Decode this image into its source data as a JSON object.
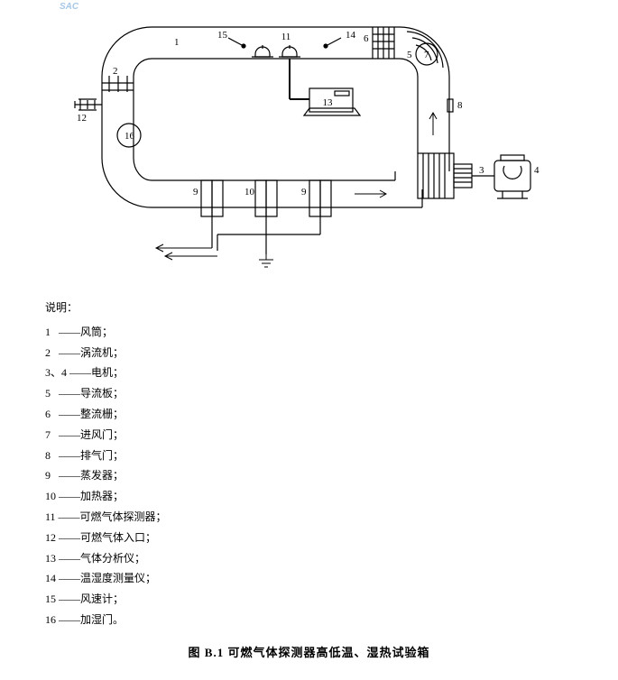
{
  "watermark": "SAC",
  "diagram": {
    "stroke": "#000000",
    "stroke_width": 1.2,
    "background": "#ffffff",
    "label_font_size": 11,
    "labels": {
      "l1": "1",
      "l2": "2",
      "l3": "3",
      "l4": "4",
      "l5": "5",
      "l6": "6",
      "l7": "7",
      "l8": "8",
      "l9a": "9",
      "l9b": "9",
      "l10": "10",
      "l11": "11",
      "l12": "12",
      "l13": "13",
      "l14": "14",
      "l15": "15",
      "l16": "16"
    }
  },
  "legend": {
    "title": "说明：",
    "items": [
      {
        "num": "1",
        "dash": "——",
        "text": "风筒；"
      },
      {
        "num": "2",
        "dash": "——",
        "text": "涡流机；"
      },
      {
        "num": "3、4",
        "dash": "——",
        "text": "电机；"
      },
      {
        "num": "5",
        "dash": "——",
        "text": "导流板；"
      },
      {
        "num": "6",
        "dash": "——",
        "text": "整流栅；"
      },
      {
        "num": "7",
        "dash": "——",
        "text": "进风门；"
      },
      {
        "num": "8",
        "dash": "——",
        "text": "排气门；"
      },
      {
        "num": "9",
        "dash": "——",
        "text": "蒸发器；"
      },
      {
        "num": "10",
        "dash": "——",
        "text": "加热器；"
      },
      {
        "num": "11",
        "dash": "——",
        "text": "可燃气体探测器；"
      },
      {
        "num": "12",
        "dash": "——",
        "text": "可燃气体入口；"
      },
      {
        "num": "13",
        "dash": "——",
        "text": "气体分析仪；"
      },
      {
        "num": "14",
        "dash": "——",
        "text": "温湿度测量仪；"
      },
      {
        "num": "15",
        "dash": "——",
        "text": "风速计；"
      },
      {
        "num": "16",
        "dash": "——",
        "text": "加湿门。"
      }
    ]
  },
  "caption": "图 B.1  可燃气体探测器高低温、湿热试验箱"
}
